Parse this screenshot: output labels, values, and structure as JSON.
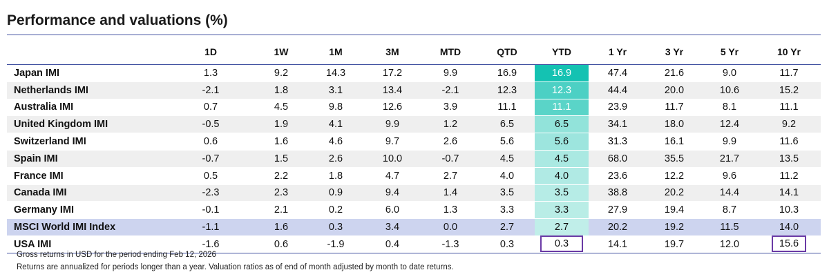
{
  "title": "Performance and valuations (%)",
  "chart_data": {
    "type": "table",
    "title": "Performance and valuations (%)",
    "columns": [
      "",
      "1D",
      "1W",
      "1M",
      "3M",
      "MTD",
      "QTD",
      "YTD",
      "1 Yr",
      "3 Yr",
      "5 Yr",
      "10 Yr"
    ],
    "rows": [
      {
        "name": "Japan IMI",
        "values": [
          "1.3",
          "9.2",
          "14.3",
          "17.2",
          "9.9",
          "16.9",
          "16.9",
          "47.4",
          "21.6",
          "9.0",
          "11.7"
        ]
      },
      {
        "name": "Netherlands IMI",
        "values": [
          "-2.1",
          "1.8",
          "3.1",
          "13.4",
          "-2.1",
          "12.3",
          "12.3",
          "44.4",
          "20.0",
          "10.6",
          "15.2"
        ]
      },
      {
        "name": "Australia IMI",
        "values": [
          "0.7",
          "4.5",
          "9.8",
          "12.6",
          "3.9",
          "11.1",
          "11.1",
          "23.9",
          "11.7",
          "8.1",
          "11.1"
        ]
      },
      {
        "name": "United Kingdom IMI",
        "values": [
          "-0.5",
          "1.9",
          "4.1",
          "9.9",
          "1.2",
          "6.5",
          "6.5",
          "34.1",
          "18.0",
          "12.4",
          "9.2"
        ]
      },
      {
        "name": "Switzerland IMI",
        "values": [
          "0.6",
          "1.6",
          "4.6",
          "9.7",
          "2.6",
          "5.6",
          "5.6",
          "31.3",
          "16.1",
          "9.9",
          "11.6"
        ]
      },
      {
        "name": "Spain IMI",
        "values": [
          "-0.7",
          "1.5",
          "2.6",
          "10.0",
          "-0.7",
          "4.5",
          "4.5",
          "68.0",
          "35.5",
          "21.7",
          "13.5"
        ]
      },
      {
        "name": "France IMI",
        "values": [
          "0.5",
          "2.2",
          "1.8",
          "4.7",
          "2.7",
          "4.0",
          "4.0",
          "23.6",
          "12.2",
          "9.6",
          "11.2"
        ]
      },
      {
        "name": "Canada IMI",
        "values": [
          "-2.3",
          "2.3",
          "0.9",
          "9.4",
          "1.4",
          "3.5",
          "3.5",
          "38.8",
          "20.2",
          "14.4",
          "14.1"
        ]
      },
      {
        "name": "Germany IMI",
        "values": [
          "-0.1",
          "2.1",
          "0.2",
          "6.0",
          "1.3",
          "3.3",
          "3.3",
          "27.9",
          "19.4",
          "8.7",
          "10.3"
        ]
      },
      {
        "name": "MSCI World IMI Index",
        "values": [
          "-1.1",
          "1.6",
          "0.3",
          "3.4",
          "0.0",
          "2.7",
          "2.7",
          "20.2",
          "19.2",
          "11.5",
          "14.0"
        ]
      },
      {
        "name": "USA IMI",
        "values": [
          "-1.6",
          "0.6",
          "-1.9",
          "0.4",
          "-1.3",
          "0.3",
          "0.3",
          "14.1",
          "19.7",
          "12.0",
          "15.6"
        ]
      }
    ],
    "ytd_heatmap": {
      "column": "YTD",
      "low_color": "#ddf6f2",
      "high_color": "#14c2b2"
    },
    "highlight_row": "MSCI World IMI Index",
    "highlight_color": "#cdd4ef",
    "boxed_cells": [
      {
        "row": "USA IMI",
        "column": "YTD"
      },
      {
        "row": "USA IMI",
        "column": "10 Yr"
      }
    ],
    "box_color": "#6a3aa5",
    "rule_color": "#3e4fa0"
  },
  "footnotes": [
    "Gross returns in USD for the period ending Feb 12, 2026",
    "Returns are annualized for periods longer than a year. Valuation ratios as of end of month adjusted by month to date returns."
  ]
}
